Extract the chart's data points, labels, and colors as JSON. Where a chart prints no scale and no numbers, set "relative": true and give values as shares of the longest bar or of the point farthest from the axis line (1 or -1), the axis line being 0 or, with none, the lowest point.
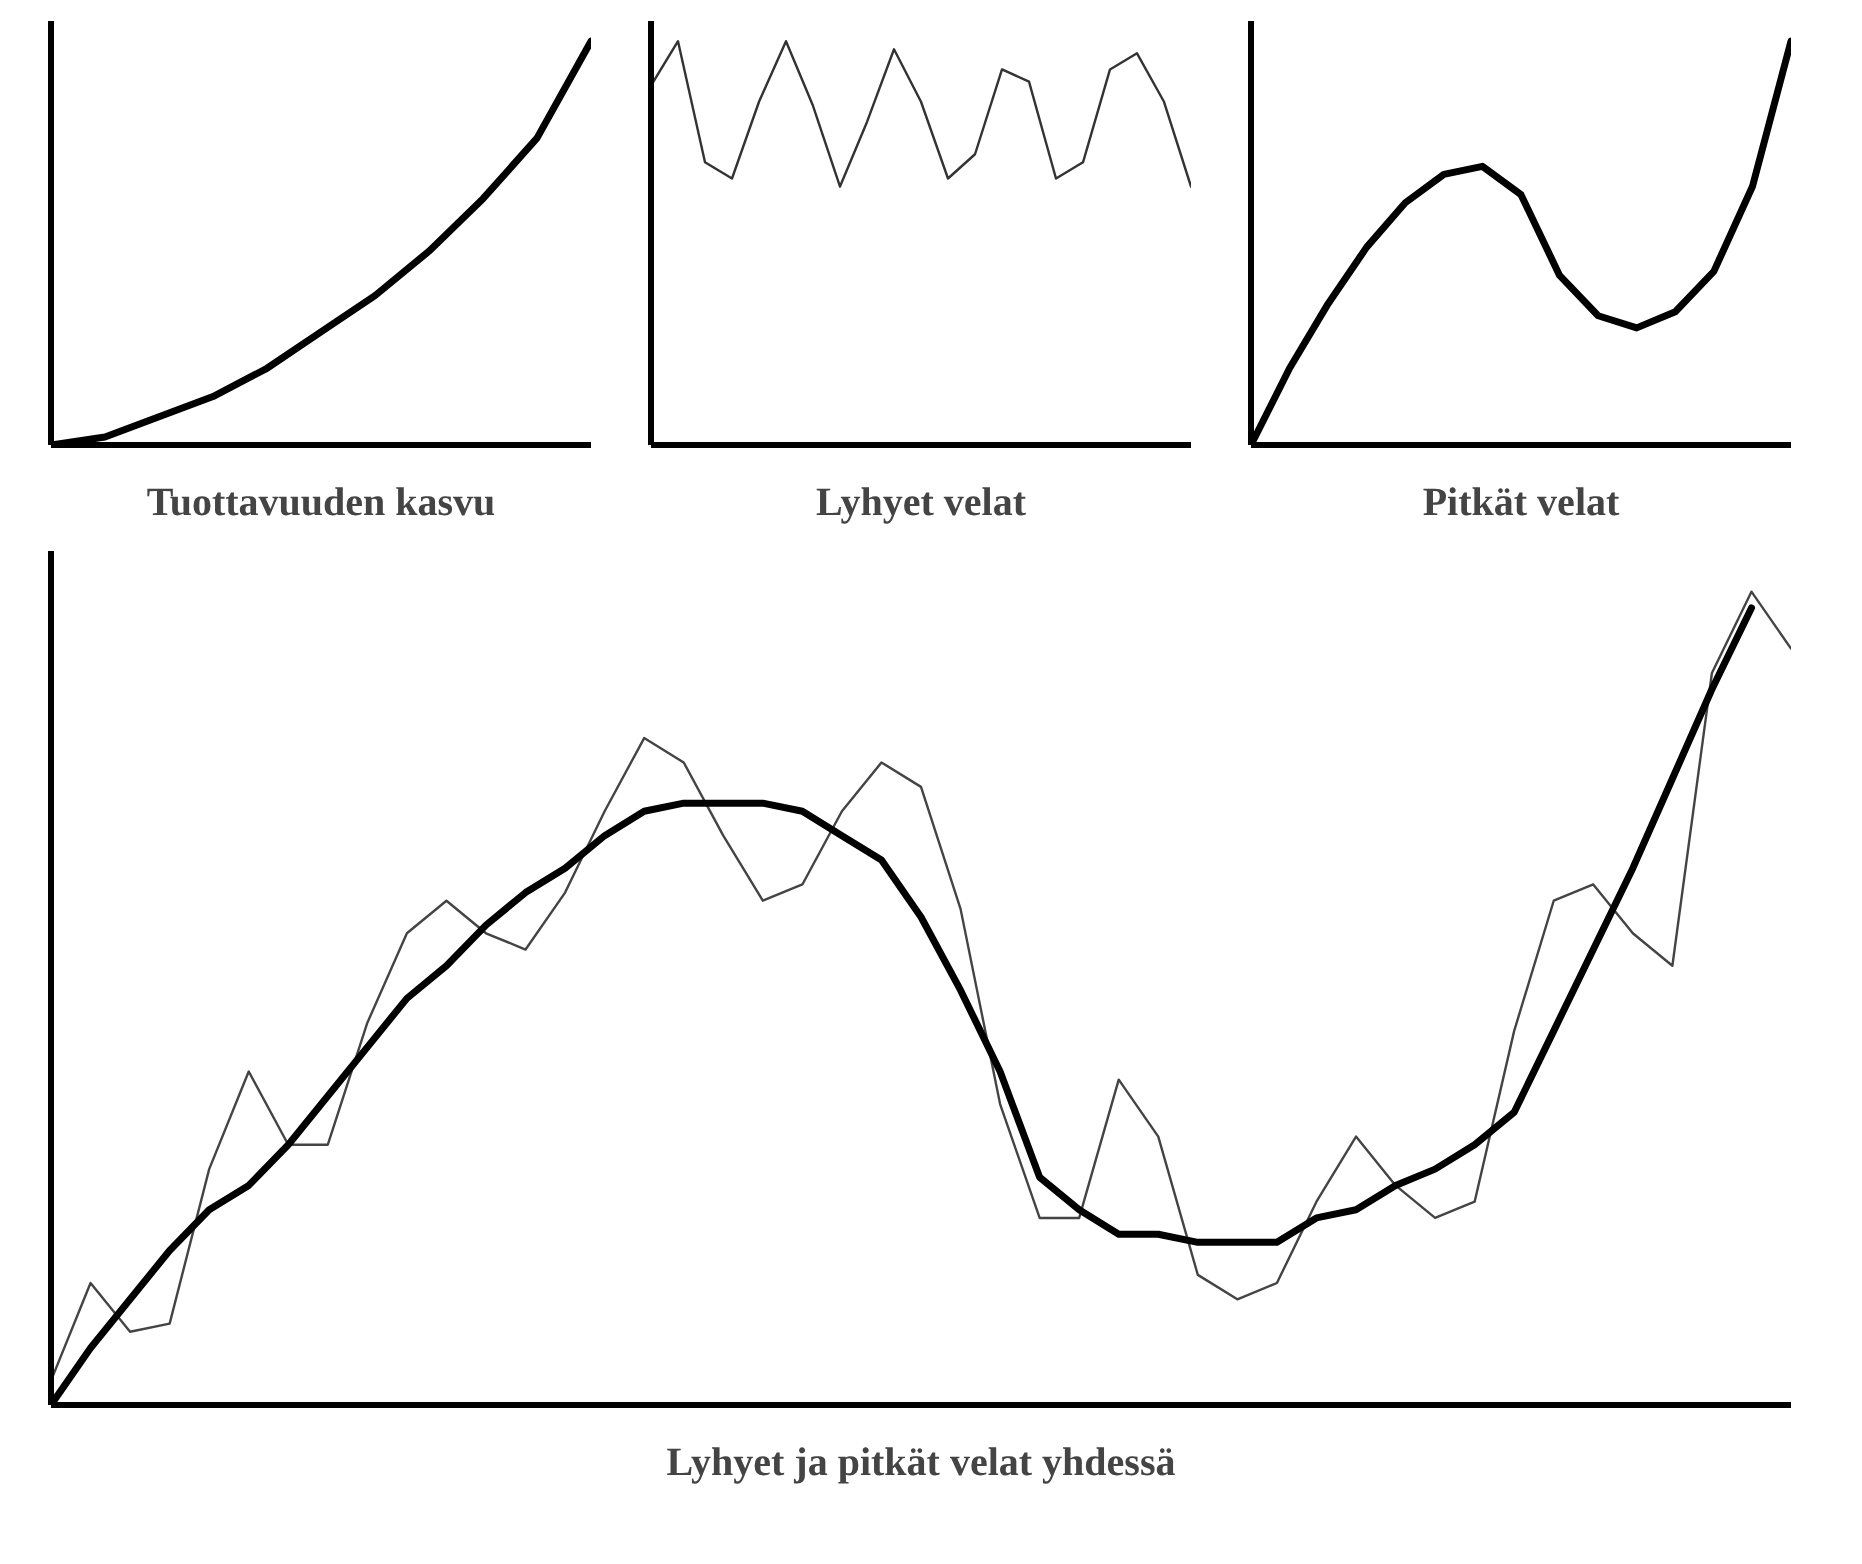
{
  "chart_data": [
    {
      "type": "line",
      "relative": true,
      "xlabel": "Tuottavuuden kasvu",
      "categories": [
        null,
        null,
        null,
        null,
        null,
        null,
        null,
        null,
        null,
        null,
        null
      ],
      "tick_labels": false,
      "marker": "none",
      "line_style": "solid",
      "series": [
        {
          "color": "#000000",
          "values": [
            0,
            0.02,
            0.07,
            0.12,
            0.19,
            0.28,
            0.37,
            0.48,
            0.61,
            0.76,
            1
          ]
        }
      ]
    },
    {
      "type": "line",
      "relative": true,
      "xlabel": "Lyhyet velat",
      "categories": [
        null,
        null,
        null,
        null,
        null,
        null,
        null,
        null,
        null,
        null,
        null,
        null,
        null,
        null,
        null,
        null,
        null,
        null,
        null,
        null,
        null
      ],
      "tick_labels": false,
      "marker": "none",
      "line_style": "solid",
      "series": [
        {
          "color": "#333333",
          "values": [
            0.89,
            1,
            0.7,
            0.66,
            0.85,
            1,
            0.84,
            0.64,
            0.8,
            0.98,
            0.85,
            0.66,
            0.72,
            0.93,
            0.9,
            0.66,
            0.7,
            0.93,
            0.97,
            0.85,
            0.64
          ]
        }
      ]
    },
    {
      "type": "line",
      "relative": true,
      "xlabel": "Pitkät velat",
      "categories": [
        null,
        null,
        null,
        null,
        null,
        null,
        null,
        null,
        null,
        null,
        null,
        null,
        null,
        null,
        null
      ],
      "tick_labels": false,
      "marker": "none",
      "line_style": "solid",
      "series": [
        {
          "color": "#000000",
          "values": [
            0,
            0.19,
            0.35,
            0.49,
            0.6,
            0.67,
            0.69,
            0.62,
            0.42,
            0.32,
            0.29,
            0.33,
            0.43,
            0.64,
            1
          ]
        }
      ]
    },
    {
      "type": "line",
      "relative": true,
      "xlabel": "Lyhyet ja pitkät velat yhdessä",
      "categories": [
        null,
        null,
        null,
        null,
        null,
        null,
        null,
        null,
        null,
        null,
        null,
        null,
        null,
        null,
        null,
        null,
        null,
        null,
        null,
        null,
        null,
        null,
        null,
        null,
        null,
        null,
        null,
        null,
        null,
        null,
        null,
        null,
        null,
        null,
        null,
        null,
        null,
        null,
        null,
        null,
        null,
        null,
        null,
        null,
        null
      ],
      "tick_labels": false,
      "marker": "none",
      "line_style": "solid",
      "series": [
        {
          "color": "#444444",
          "values": [
            0.03,
            0.15,
            0.09,
            0.1,
            0.29,
            0.41,
            0.32,
            0.32,
            0.47,
            0.58,
            0.62,
            0.58,
            0.56,
            0.63,
            0.73,
            0.82,
            0.79,
            0.7,
            0.62,
            0.64,
            0.73,
            0.79,
            0.76,
            0.61,
            0.37,
            0.23,
            0.23,
            0.4,
            0.33,
            0.16,
            0.13,
            0.15,
            0.25,
            0.33,
            0.27,
            0.23,
            0.25,
            0.46,
            0.62,
            0.64,
            0.58,
            0.54,
            0.9,
            1,
            0.93
          ]
        },
        {
          "color": "#000000",
          "values": [
            0,
            0.07,
            0.13,
            0.19,
            0.24,
            0.27,
            0.32,
            0.38,
            0.44,
            0.5,
            0.54,
            0.59,
            0.63,
            0.66,
            0.7,
            0.73,
            0.74,
            0.74,
            0.74,
            0.73,
            0.7,
            0.67,
            0.6,
            0.51,
            0.41,
            0.28,
            0.24,
            0.21,
            0.21,
            0.2,
            0.2,
            0.2,
            0.23,
            0.24,
            0.27,
            0.29,
            0.32,
            0.36,
            0.46,
            0.56,
            0.66,
            0.77,
            0.88,
            0.98,
            null
          ]
        }
      ]
    }
  ]
}
